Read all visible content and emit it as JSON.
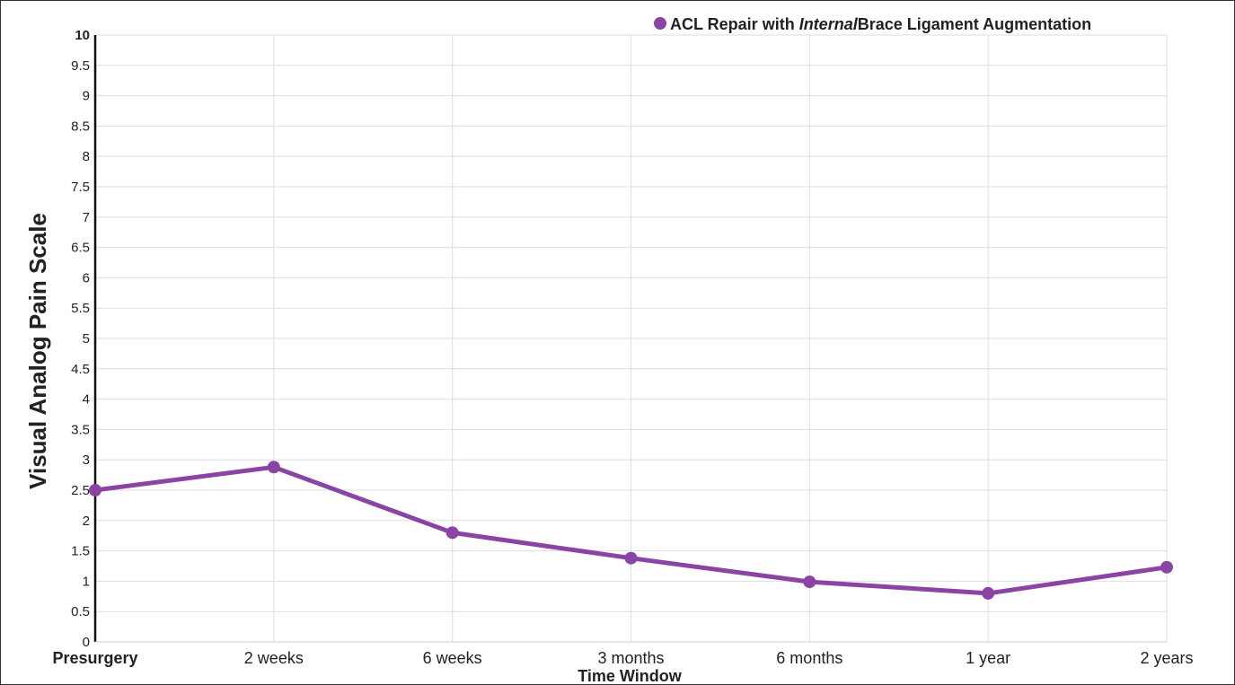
{
  "chart_data": {
    "type": "line",
    "title": "",
    "xlabel": "Time Window",
    "ylabel": "Visual Analog Pain Scale",
    "categories": [
      "Presurgery",
      "2 weeks",
      "6 weeks",
      "3 months",
      "6 months",
      "1 year",
      "2 years"
    ],
    "bold_categories": [
      "Presurgery"
    ],
    "ylim": [
      0,
      10
    ],
    "yticks": [
      0,
      0.5,
      1,
      1.5,
      2,
      2.5,
      3,
      3.5,
      4,
      4.5,
      5,
      5.5,
      6,
      6.5,
      7,
      7.5,
      8,
      8.5,
      9,
      9.5,
      10
    ],
    "grid": true,
    "legend_position": "top-right",
    "legend": {
      "prefix": "ACL Repair with ",
      "italic": "Internal",
      "suffix": "Brace Ligament Augmentation"
    },
    "series": [
      {
        "color": "#8a44a3",
        "values": [
          2.5,
          2.88,
          1.8,
          1.38,
          0.99,
          0.8,
          1.23
        ]
      }
    ]
  }
}
